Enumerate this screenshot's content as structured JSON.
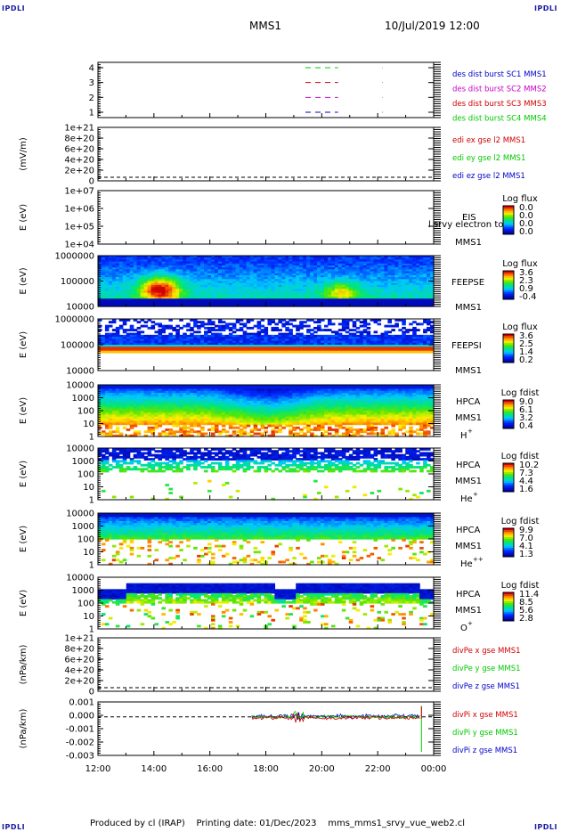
{
  "header": {
    "corner_label": "IPDLI",
    "spacecraft": "MMS1",
    "datetime": "10/Jul/2019 12:00"
  },
  "footer": {
    "text": "Produced by cl (IRAP)    Printing date: 01/Dec/2023    mms_mms1_srvy_vue_web2.cl"
  },
  "colors": {
    "blue": "#0000c8",
    "magenta": "#c800c8",
    "red": "#d00000",
    "green": "#00c800"
  },
  "time_axis": {
    "ticks": [
      "12:00",
      "14:00",
      "16:00",
      "18:00",
      "20:00",
      "22:00",
      "00:00"
    ]
  },
  "chart_data": [
    {
      "type": "line",
      "id": "burst",
      "ylabel": "",
      "yticks": [
        "4",
        "3",
        "2",
        "1"
      ],
      "legend": [
        {
          "text": "des dist burst SC1 MMS1",
          "color": "#0000c8"
        },
        {
          "text": "des dist burst SC2 MMS2",
          "color": "#c800c8"
        },
        {
          "text": "des dist burst SC3 MMS3",
          "color": "#d00000"
        },
        {
          "text": "des dist burst SC4 MMS4",
          "color": "#00c800"
        }
      ],
      "segments": [
        {
          "sc": 4,
          "x_start": "19:25",
          "x_end": "20:35",
          "color": "#00c800"
        },
        {
          "sc": 3,
          "x_start": "19:25",
          "x_end": "20:35",
          "color": "#d00000"
        },
        {
          "sc": 2,
          "x_start": "19:25",
          "x_end": "20:35",
          "color": "#c800c8"
        },
        {
          "sc": 1,
          "x_start": "19:25",
          "x_end": "20:35",
          "color": "#0000c8"
        }
      ]
    },
    {
      "type": "line",
      "id": "edi",
      "ylabel": "(mV/m)",
      "yticks": [
        "1e+21",
        "8e+20",
        "6e+20",
        "4e+20",
        "2e+20",
        "0"
      ],
      "legend": [
        {
          "text": "edi ex gse l2 MMS1",
          "color": "#d00000"
        },
        {
          "text": "edi ey gse l2 MMS1",
          "color": "#00c800"
        },
        {
          "text": "edi ez gse l2 MMS1",
          "color": "#0000c8"
        }
      ]
    },
    {
      "type": "heatmap",
      "id": "eis",
      "ylabel": "E (eV)",
      "yticks": [
        "1e+07",
        "1e+06",
        "1e+05",
        "1e+04"
      ],
      "right_labels": [
        "EIS",
        "MMS1"
      ],
      "overlay_text": "l srvy electron to",
      "colorbar": {
        "title": "Log flux",
        "ticks": [
          "0.0",
          "0.0",
          "0.0",
          "0.0"
        ]
      }
    },
    {
      "type": "heatmap",
      "id": "feepse",
      "ylabel": "E (eV)",
      "yticks": [
        "1000000",
        "100000",
        "10000"
      ],
      "right_labels": [
        "FEEPSE",
        "MMS1"
      ],
      "colorbar": {
        "title": "Log flux",
        "ticks": [
          "3.6",
          "2.3",
          "0.9",
          "-0.4"
        ]
      }
    },
    {
      "type": "heatmap",
      "id": "feepsi",
      "ylabel": "E (eV)",
      "yticks": [
        "1000000",
        "100000",
        "10000"
      ],
      "right_labels": [
        "FEEPSI",
        "MMS1"
      ],
      "colorbar": {
        "title": "Log flux",
        "ticks": [
          "3.6",
          "2.5",
          "1.4",
          "0.2"
        ]
      }
    },
    {
      "type": "heatmap",
      "id": "hpca_h",
      "ylabel": "E (eV)",
      "yticks": [
        "10000",
        "1000",
        "100",
        "10",
        "1"
      ],
      "right_labels": [
        "HPCA",
        "MMS1",
        "H",
        "+"
      ],
      "colorbar": {
        "title": "Log fdist",
        "ticks": [
          "9.0",
          "6.1",
          "3.2",
          "0.4"
        ]
      }
    },
    {
      "type": "heatmap",
      "id": "hpca_he",
      "ylabel": "E (eV)",
      "yticks": [
        "10000",
        "1000",
        "100",
        "10",
        "1"
      ],
      "right_labels": [
        "HPCA",
        "MMS1",
        "He",
        "+"
      ],
      "colorbar": {
        "title": "Log fdist",
        "ticks": [
          "10.2",
          "7.3",
          "4.4",
          "1.6"
        ]
      }
    },
    {
      "type": "heatmap",
      "id": "hpca_hepp",
      "ylabel": "E (eV)",
      "yticks": [
        "10000",
        "1000",
        "100",
        "10",
        "1"
      ],
      "right_labels": [
        "HPCA",
        "MMS1",
        "He",
        "++"
      ],
      "colorbar": {
        "title": "Log fdist",
        "ticks": [
          "9.9",
          "7.0",
          "4.1",
          "1.3"
        ]
      }
    },
    {
      "type": "heatmap",
      "id": "hpca_o",
      "ylabel": "E (eV)",
      "yticks": [
        "10000",
        "1000",
        "100",
        "10",
        "1"
      ],
      "right_labels": [
        "HPCA",
        "MMS1",
        "O",
        "+"
      ],
      "colorbar": {
        "title": "Log fdist",
        "ticks": [
          "11.4",
          "8.5",
          "5.6",
          "2.8"
        ]
      }
    },
    {
      "type": "line",
      "id": "divpe",
      "ylabel": "(nPa/km)",
      "yticks": [
        "1e+21",
        "8e+20",
        "6e+20",
        "4e+20",
        "2e+20",
        "0"
      ],
      "legend": [
        {
          "text": "divPe x gse MMS1",
          "color": "#d00000"
        },
        {
          "text": "divPe y gse MMS1",
          "color": "#00c800"
        },
        {
          "text": "divPe z gse MMS1",
          "color": "#0000c8"
        }
      ]
    },
    {
      "type": "line",
      "id": "divpi",
      "ylabel": "(nPa/km)",
      "yticks": [
        "0.001",
        "0.000",
        "-0.001",
        "-0.002",
        "-0.003"
      ],
      "legend": [
        {
          "text": "divPi x gse MMS1",
          "color": "#d00000"
        },
        {
          "text": "divPi y gse MMS1",
          "color": "#00c800"
        },
        {
          "text": "divPi z gse MMS1",
          "color": "#0000c8"
        }
      ],
      "data_range": {
        "x_start": "17:30",
        "x_end": "23:30"
      }
    }
  ]
}
